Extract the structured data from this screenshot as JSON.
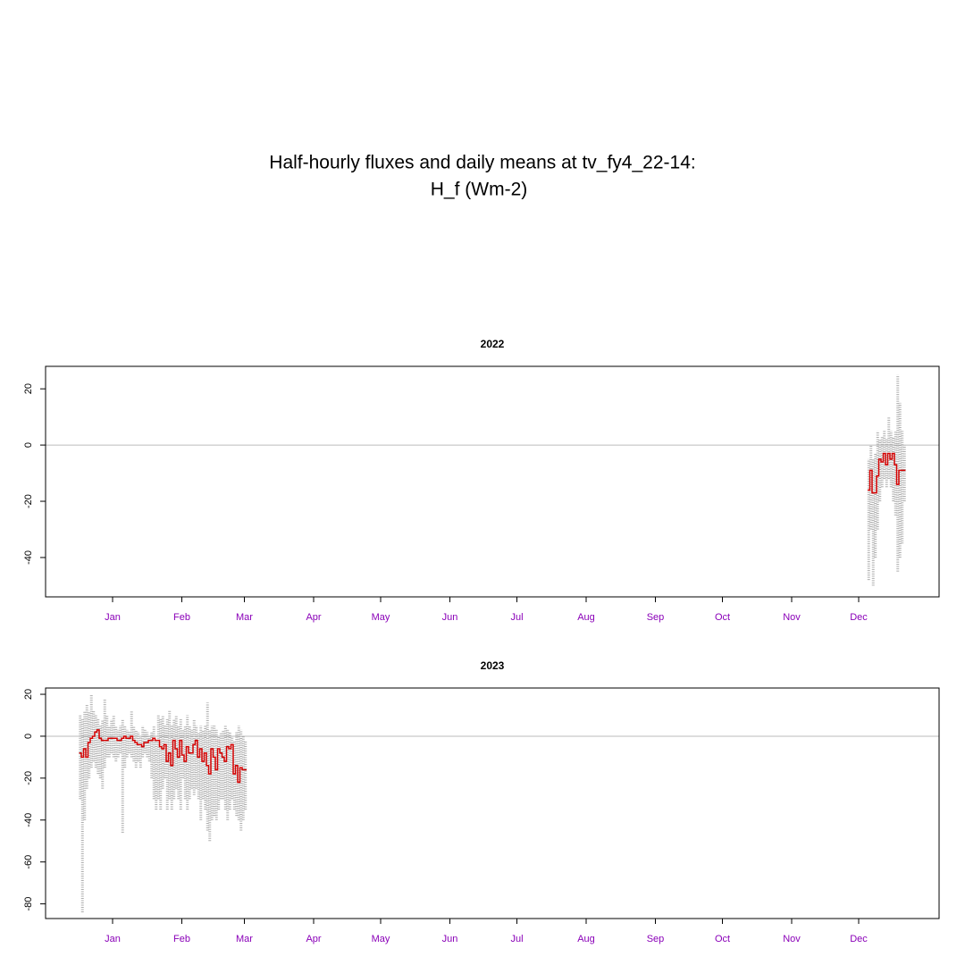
{
  "title": [
    "Half-hourly fluxes and daily means at tv_fy4_22-14:",
    "H_f (Wm-2)"
  ],
  "chart_data": [
    {
      "type": "line",
      "title": "2022",
      "xlim": [
        -29,
        371
      ],
      "ylim": [
        -54,
        28
      ],
      "xticks": [
        {
          "value": 1,
          "label": "Jan"
        },
        {
          "value": 32,
          "label": "Feb"
        },
        {
          "value": 60,
          "label": "Mar"
        },
        {
          "value": 91,
          "label": "Apr"
        },
        {
          "value": 121,
          "label": "May"
        },
        {
          "value": 152,
          "label": "Jun"
        },
        {
          "value": 182,
          "label": "Jul"
        },
        {
          "value": 213,
          "label": "Aug"
        },
        {
          "value": 244,
          "label": "Sep"
        },
        {
          "value": 274,
          "label": "Oct"
        },
        {
          "value": 305,
          "label": "Nov"
        },
        {
          "value": 335,
          "label": "Dec"
        }
      ],
      "yticks": [
        -40,
        -20,
        0,
        20
      ],
      "hline": 0,
      "tick_color": "#8a00b8",
      "point_color": "#999999",
      "mean_color": "#d40000",
      "x": [
        339,
        340,
        341,
        342,
        343,
        344,
        345,
        346,
        347,
        348,
        349,
        350,
        351,
        352,
        353,
        354,
        355
      ],
      "values": [
        -16,
        -9,
        -17,
        -17,
        -11,
        -5,
        -6,
        -3,
        -7,
        -3,
        -5,
        -3,
        -7,
        -14,
        -9,
        -9,
        -9
      ],
      "lows": [
        -48,
        -30,
        -50,
        -40,
        -30,
        -20,
        -15,
        -12,
        -15,
        -12,
        -15,
        -20,
        -25,
        -45,
        -40,
        -35,
        -20
      ],
      "highs": [
        -5,
        0,
        -5,
        -3,
        5,
        2,
        3,
        5,
        2,
        10,
        5,
        3,
        5,
        25,
        15,
        5,
        0
      ]
    },
    {
      "type": "line",
      "title": "2023",
      "xlim": [
        -29,
        371
      ],
      "ylim": [
        -87,
        23
      ],
      "xticks": [
        {
          "value": 1,
          "label": "Jan"
        },
        {
          "value": 32,
          "label": "Feb"
        },
        {
          "value": 60,
          "label": "Mar"
        },
        {
          "value": 91,
          "label": "Apr"
        },
        {
          "value": 121,
          "label": "May"
        },
        {
          "value": 152,
          "label": "Jun"
        },
        {
          "value": 182,
          "label": "Jul"
        },
        {
          "value": 213,
          "label": "Aug"
        },
        {
          "value": 244,
          "label": "Sep"
        },
        {
          "value": 274,
          "label": "Oct"
        },
        {
          "value": 305,
          "label": "Nov"
        },
        {
          "value": 335,
          "label": "Dec"
        }
      ],
      "yticks": [
        -80,
        -60,
        -40,
        -20,
        0,
        20
      ],
      "hline": 0,
      "tick_color": "#8a00b8",
      "point_color": "#999999",
      "mean_color": "#d40000",
      "x": [
        -14,
        -13,
        -12,
        -11,
        -10,
        -9,
        -8,
        -7,
        -6,
        -5,
        -4,
        -3,
        -2,
        -1,
        0,
        1,
        2,
        3,
        4,
        5,
        6,
        7,
        8,
        9,
        10,
        11,
        12,
        13,
        14,
        15,
        16,
        17,
        18,
        19,
        20,
        21,
        22,
        23,
        24,
        25,
        26,
        27,
        28,
        29,
        30,
        31,
        32,
        33,
        34,
        35,
        36,
        37,
        38,
        39,
        40,
        41,
        42,
        43,
        44,
        45,
        46,
        47,
        48,
        49,
        50,
        51,
        52,
        53,
        54,
        55,
        56,
        57,
        58,
        59,
        60
      ],
      "values": [
        -8,
        -10,
        -6,
        -10,
        -3,
        -1,
        0,
        2,
        3,
        -1,
        -2,
        -2,
        -2,
        -1,
        -1,
        -1,
        -1,
        -2,
        -2,
        -1,
        0,
        -1,
        -1,
        0,
        -2,
        -3,
        -4,
        -4,
        -5,
        -3,
        -3,
        -2,
        -2,
        -1,
        -2,
        -2,
        -5,
        -6,
        -4,
        -12,
        -8,
        -14,
        -2,
        -6,
        -10,
        -2,
        -9,
        -12,
        -5,
        -8,
        -8,
        -4,
        -2,
        -10,
        -6,
        -12,
        -8,
        -14,
        -18,
        -6,
        -10,
        -16,
        -6,
        -8,
        -10,
        -12,
        -5,
        -6,
        -4,
        -18,
        -14,
        -22,
        -15,
        -16,
        -16
      ],
      "lows": [
        -30,
        -84,
        -40,
        -25,
        -20,
        -15,
        -12,
        -15,
        -18,
        -20,
        -25,
        -15,
        -10,
        -10,
        -8,
        -10,
        -12,
        -10,
        -8,
        -46,
        -15,
        -10,
        -8,
        -10,
        -12,
        -15,
        -12,
        -15,
        -10,
        -8,
        -10,
        -12,
        -20,
        -30,
        -35,
        -30,
        -35,
        -25,
        -20,
        -35,
        -30,
        -35,
        -30,
        -25,
        -30,
        -35,
        -20,
        -30,
        -35,
        -30,
        -25,
        -28,
        -25,
        -30,
        -40,
        -30,
        -35,
        -45,
        -50,
        -40,
        -38,
        -40,
        -35,
        -30,
        -30,
        -35,
        -40,
        -35,
        -30,
        -35,
        -38,
        -40,
        -45,
        -40,
        -35
      ],
      "highs": [
        10,
        8,
        12,
        15,
        12,
        20,
        12,
        10,
        8,
        5,
        8,
        18,
        10,
        5,
        8,
        10,
        5,
        3,
        5,
        8,
        5,
        3,
        2,
        12,
        5,
        3,
        2,
        0,
        5,
        3,
        2,
        0,
        2,
        5,
        -2,
        10,
        8,
        10,
        5,
        8,
        12,
        5,
        8,
        10,
        5,
        8,
        3,
        5,
        10,
        5,
        3,
        8,
        5,
        2,
        5,
        3,
        5,
        16,
        3,
        5,
        5,
        3,
        0,
        2,
        3,
        5,
        3,
        2,
        0,
        -2,
        2,
        5,
        3,
        0,
        -2
      ]
    }
  ]
}
